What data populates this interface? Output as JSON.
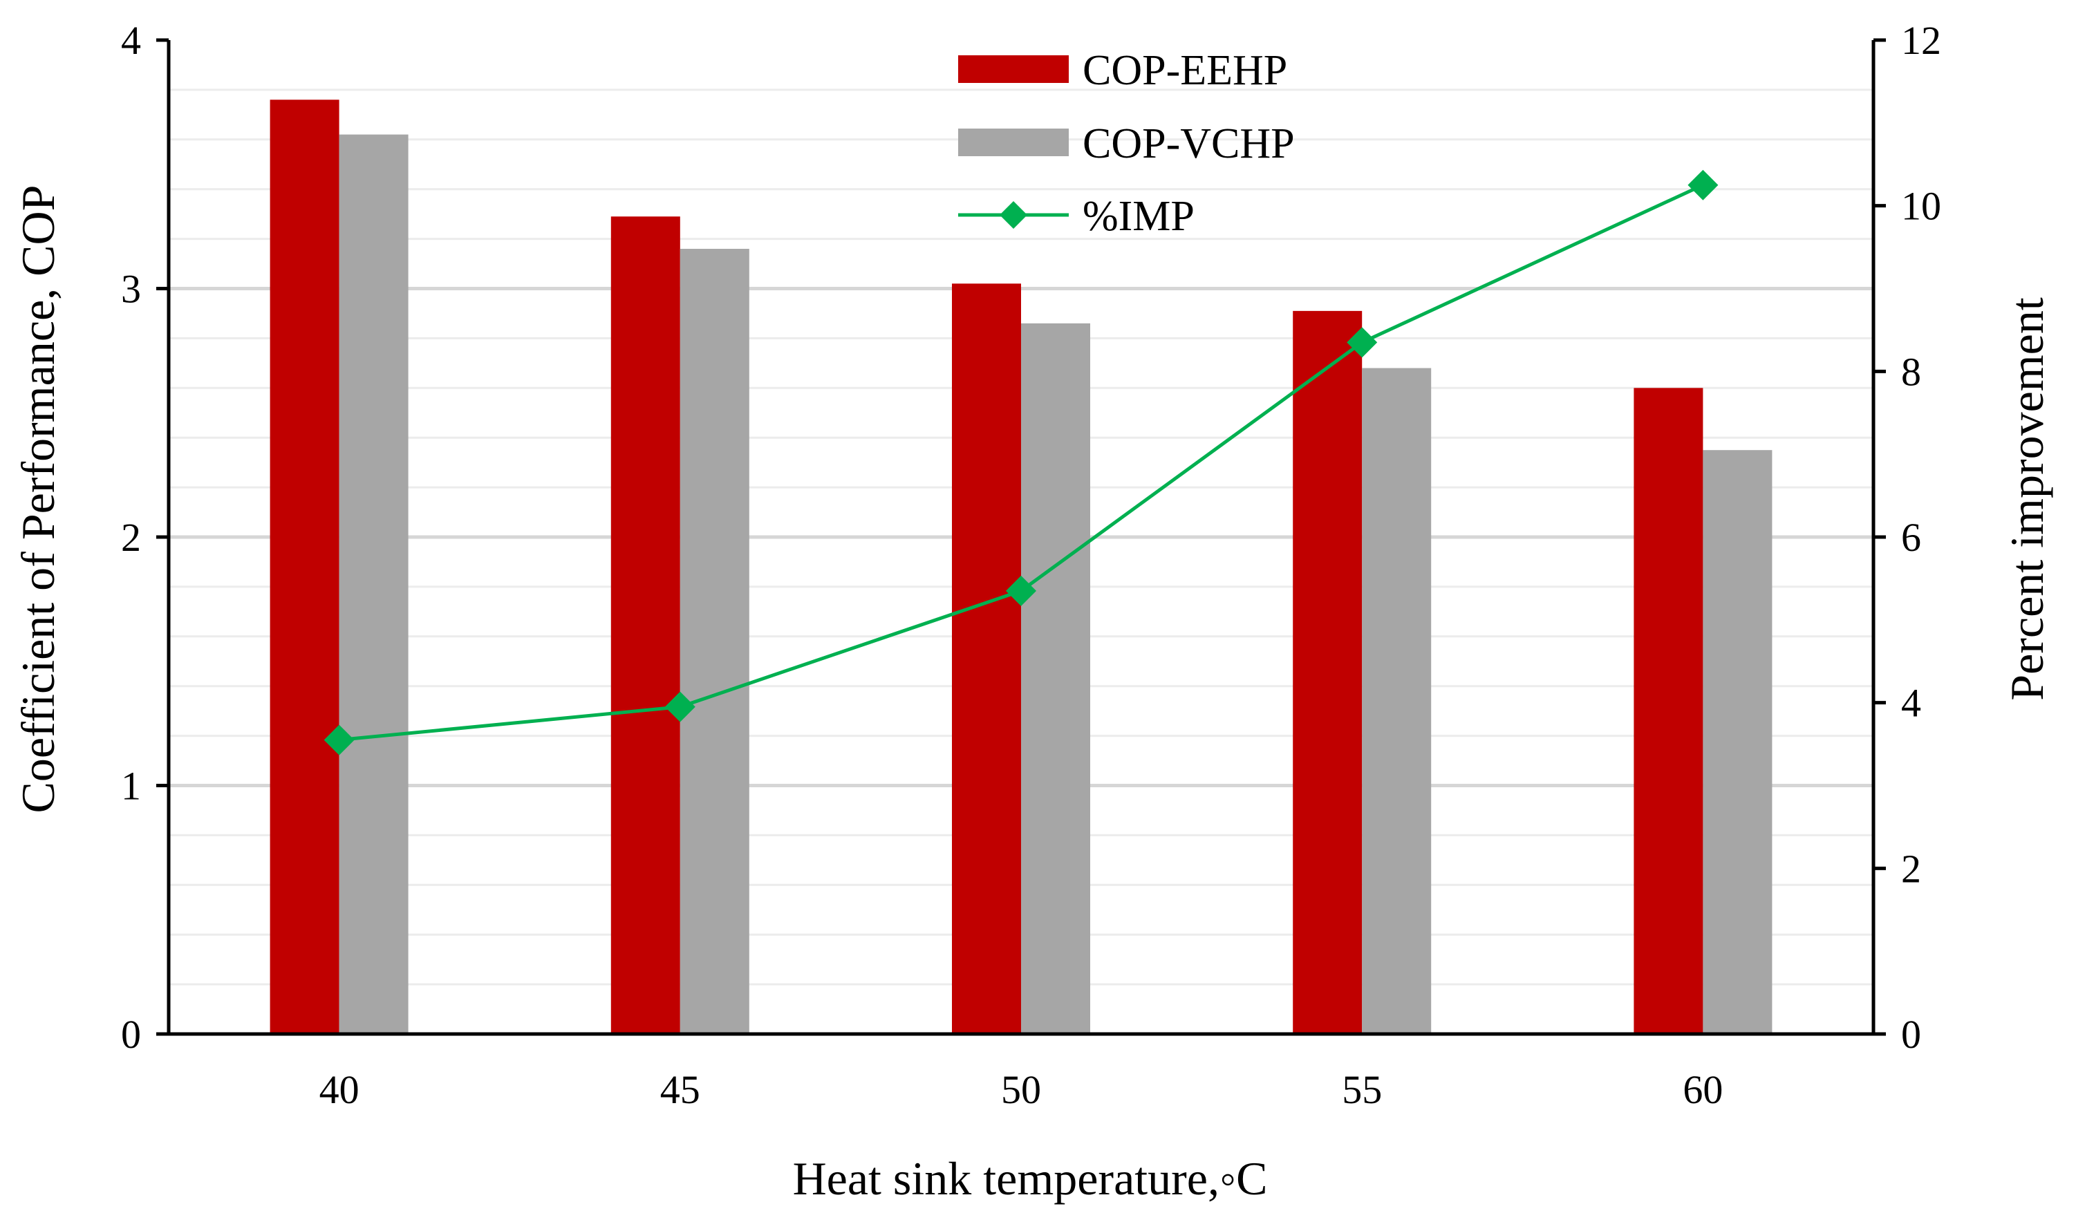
{
  "chart_data": {
    "type": "bar",
    "categories": [
      "40",
      "45",
      "50",
      "55",
      "60"
    ],
    "series": [
      {
        "name": "COP-EEHP",
        "kind": "bar",
        "axis": "left",
        "color": "#C00000",
        "values": [
          3.76,
          3.29,
          3.02,
          2.91,
          2.6
        ]
      },
      {
        "name": "COP-VCHP",
        "kind": "bar",
        "axis": "left",
        "color": "#A6A6A6",
        "values": [
          3.62,
          3.16,
          2.86,
          2.68,
          2.35
        ]
      },
      {
        "name": "%IMP",
        "kind": "line",
        "axis": "right",
        "color": "#00B050",
        "marker": "diamond",
        "values": [
          3.55,
          3.95,
          5.35,
          8.35,
          10.25
        ]
      }
    ],
    "xlabel": "Heat sink temperature,◦C",
    "ylabel": "Coefficient of Performance, COP",
    "y2label": "Percent improvement",
    "ylim": [
      0,
      4
    ],
    "y2lim": [
      0,
      12
    ],
    "yticks": [
      "0",
      "1",
      "2",
      "3",
      "4"
    ],
    "y2ticks": [
      "0",
      "2",
      "4",
      "6",
      "8",
      "10",
      "12"
    ],
    "grid": true,
    "legend": "top-center"
  }
}
